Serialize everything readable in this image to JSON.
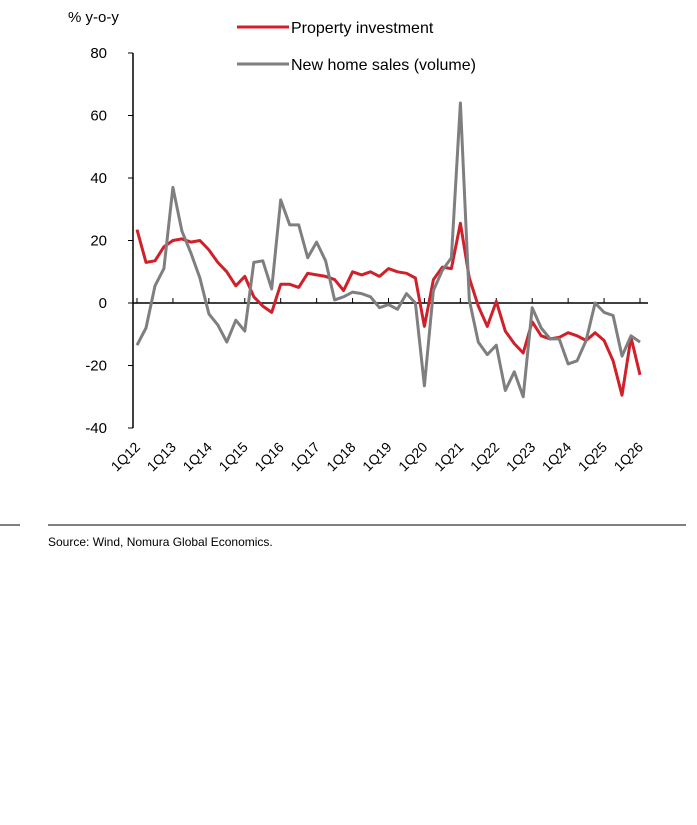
{
  "chart_data": {
    "type": "line",
    "y_label": "% y-o-y",
    "source": "Source: Wind, Nomura Global Economics.",
    "categories": [
      "1Q12",
      null,
      null,
      null,
      "1Q13",
      null,
      null,
      null,
      "1Q14",
      null,
      null,
      null,
      "1Q15",
      null,
      null,
      null,
      "1Q16",
      null,
      null,
      null,
      "1Q17",
      null,
      null,
      null,
      "1Q18",
      null,
      null,
      null,
      "1Q19",
      null,
      null,
      null,
      "1Q20",
      null,
      null,
      null,
      "1Q21",
      null,
      null,
      null,
      "1Q22",
      null,
      null,
      null,
      "1Q23",
      null,
      null,
      null,
      "1Q24",
      null,
      null,
      null,
      "1Q25",
      null,
      null,
      null,
      "1Q26"
    ],
    "series": [
      {
        "name": "Property investment",
        "color": "#d0202a",
        "values": [
          23.5,
          13,
          13.5,
          18,
          20,
          20.5,
          19.5,
          20,
          17,
          13,
          10,
          5.5,
          8.5,
          2,
          -1,
          -3,
          6,
          6,
          5,
          9.5,
          9,
          8.5,
          7.5,
          4,
          10,
          9,
          10,
          8.5,
          11,
          10,
          9.5,
          8,
          -7.5,
          7.5,
          11.5,
          11,
          25.5,
          8,
          -1,
          -7.5,
          0.5,
          -9,
          -13,
          -16,
          -6,
          -10.5,
          -11.5,
          -11,
          -9.5,
          -10.5,
          -12,
          -9.5,
          -12,
          -18.5,
          -29.5,
          -11,
          -23
        ]
      },
      {
        "name": "New home sales (volume)",
        "color": "#7f7f7f",
        "values": [
          -13.5,
          -8,
          5.5,
          11,
          37,
          23,
          16,
          8,
          -3.5,
          -7,
          -12.5,
          -5.5,
          -9,
          13,
          13.5,
          4.5,
          33,
          25,
          25,
          14.5,
          19.5,
          13.5,
          1,
          2,
          3.5,
          3,
          2,
          -1.5,
          -0.5,
          -2,
          3,
          0,
          -26.5,
          4,
          10.5,
          14.5,
          64,
          1,
          -12.5,
          -16.5,
          -13.5,
          -28,
          -22,
          -30,
          -1.5,
          -8,
          -11.5,
          -11.5,
          -19.5,
          -18.5,
          -12,
          0,
          -3,
          -4,
          -17,
          -10.5,
          -12.5
        ]
      }
    ],
    "ylim": [
      -40,
      80
    ],
    "yticks": [
      -40,
      -20,
      0,
      20,
      40,
      60,
      80
    ]
  }
}
